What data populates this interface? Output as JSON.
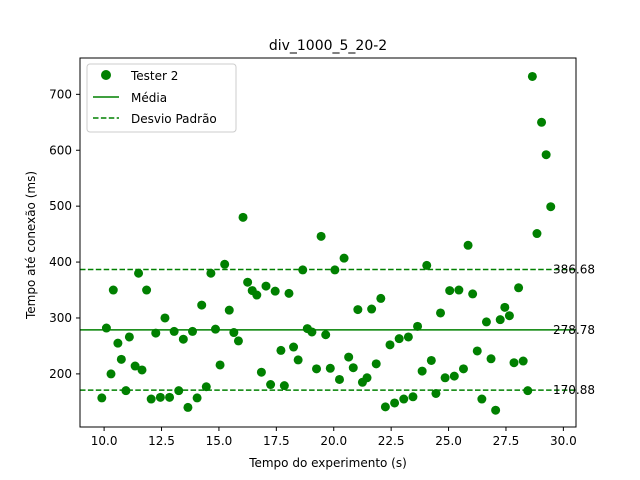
{
  "chart_data": {
    "type": "scatter",
    "title": "div_1000_5_20-2",
    "xlabel": "Tempo do experimento (s)",
    "ylabel": "Tempo até conexão (ms)",
    "xlim": [
      8.95,
      30.55
    ],
    "ylim": [
      105,
      765
    ],
    "xticks": [
      10.0,
      12.5,
      15.0,
      17.5,
      20.0,
      22.5,
      25.0,
      27.5,
      30.0
    ],
    "xtick_labels": [
      "10.0",
      "12.5",
      "15.0",
      "17.5",
      "20.0",
      "22.5",
      "25.0",
      "27.5",
      "30.0"
    ],
    "yticks": [
      200,
      300,
      400,
      500,
      600,
      700
    ],
    "ytick_labels": [
      "200",
      "300",
      "400",
      "500",
      "600",
      "700"
    ],
    "legend_position": "top-left",
    "legend": [
      {
        "label": "Tester 2",
        "kind": "marker"
      },
      {
        "label": "Média",
        "kind": "solid-line"
      },
      {
        "label": "Desvio Padrão",
        "kind": "dashed-line"
      }
    ],
    "color": "#008000",
    "mean": 278.78,
    "mean_label": "278.78",
    "std_upper": 386.68,
    "std_upper_label": "386.68",
    "std_lower": 170.88,
    "std_lower_label": "170.88",
    "series": [
      {
        "name": "Tester 2",
        "points": [
          [
            9.9,
            157
          ],
          [
            10.1,
            282
          ],
          [
            10.3,
            200
          ],
          [
            10.4,
            350
          ],
          [
            10.6,
            255
          ],
          [
            10.75,
            226
          ],
          [
            10.95,
            170
          ],
          [
            11.1,
            266
          ],
          [
            11.35,
            214
          ],
          [
            11.5,
            380
          ],
          [
            11.65,
            207
          ],
          [
            11.85,
            350
          ],
          [
            12.05,
            155
          ],
          [
            12.25,
            273
          ],
          [
            12.45,
            158
          ],
          [
            12.65,
            300
          ],
          [
            12.85,
            158
          ],
          [
            13.05,
            276
          ],
          [
            13.25,
            170
          ],
          [
            13.45,
            262
          ],
          [
            13.65,
            140
          ],
          [
            13.85,
            276
          ],
          [
            14.05,
            157
          ],
          [
            14.25,
            323
          ],
          [
            14.45,
            177
          ],
          [
            14.65,
            380
          ],
          [
            14.85,
            280
          ],
          [
            15.05,
            216
          ],
          [
            15.25,
            396
          ],
          [
            15.45,
            314
          ],
          [
            15.65,
            274
          ],
          [
            15.85,
            259
          ],
          [
            16.05,
            480
          ],
          [
            16.25,
            364
          ],
          [
            16.45,
            349
          ],
          [
            16.65,
            341
          ],
          [
            16.85,
            203
          ],
          [
            17.05,
            357
          ],
          [
            17.25,
            181
          ],
          [
            17.45,
            348
          ],
          [
            17.7,
            242
          ],
          [
            17.85,
            179
          ],
          [
            18.05,
            344
          ],
          [
            18.25,
            248
          ],
          [
            18.45,
            225
          ],
          [
            18.65,
            386
          ],
          [
            18.85,
            281
          ],
          [
            19.05,
            275
          ],
          [
            19.25,
            209
          ],
          [
            19.45,
            446
          ],
          [
            19.65,
            270
          ],
          [
            19.85,
            210
          ],
          [
            20.05,
            386
          ],
          [
            20.25,
            190
          ],
          [
            20.45,
            407
          ],
          [
            20.65,
            230
          ],
          [
            20.85,
            211
          ],
          [
            21.05,
            315
          ],
          [
            21.25,
            185
          ],
          [
            21.45,
            193
          ],
          [
            21.65,
            316
          ],
          [
            21.85,
            218
          ],
          [
            22.05,
            335
          ],
          [
            22.25,
            141
          ],
          [
            22.45,
            252
          ],
          [
            22.65,
            148
          ],
          [
            22.85,
            263
          ],
          [
            23.05,
            155
          ],
          [
            23.25,
            266
          ],
          [
            23.45,
            159
          ],
          [
            23.65,
            285
          ],
          [
            23.85,
            205
          ],
          [
            24.05,
            394
          ],
          [
            24.25,
            224
          ],
          [
            24.45,
            165
          ],
          [
            24.65,
            309
          ],
          [
            24.85,
            193
          ],
          [
            25.05,
            349
          ],
          [
            25.25,
            196
          ],
          [
            25.45,
            350
          ],
          [
            25.65,
            209
          ],
          [
            25.85,
            430
          ],
          [
            26.05,
            343
          ],
          [
            26.25,
            241
          ],
          [
            26.45,
            155
          ],
          [
            26.65,
            293
          ],
          [
            26.85,
            227
          ],
          [
            27.05,
            135
          ],
          [
            27.25,
            297
          ],
          [
            27.45,
            319
          ],
          [
            27.65,
            304
          ],
          [
            27.85,
            220
          ],
          [
            28.05,
            354
          ],
          [
            28.25,
            223
          ],
          [
            28.45,
            170
          ],
          [
            28.65,
            732
          ],
          [
            28.85,
            451
          ],
          [
            29.05,
            650
          ],
          [
            29.25,
            592
          ],
          [
            29.45,
            499
          ]
        ]
      }
    ]
  }
}
